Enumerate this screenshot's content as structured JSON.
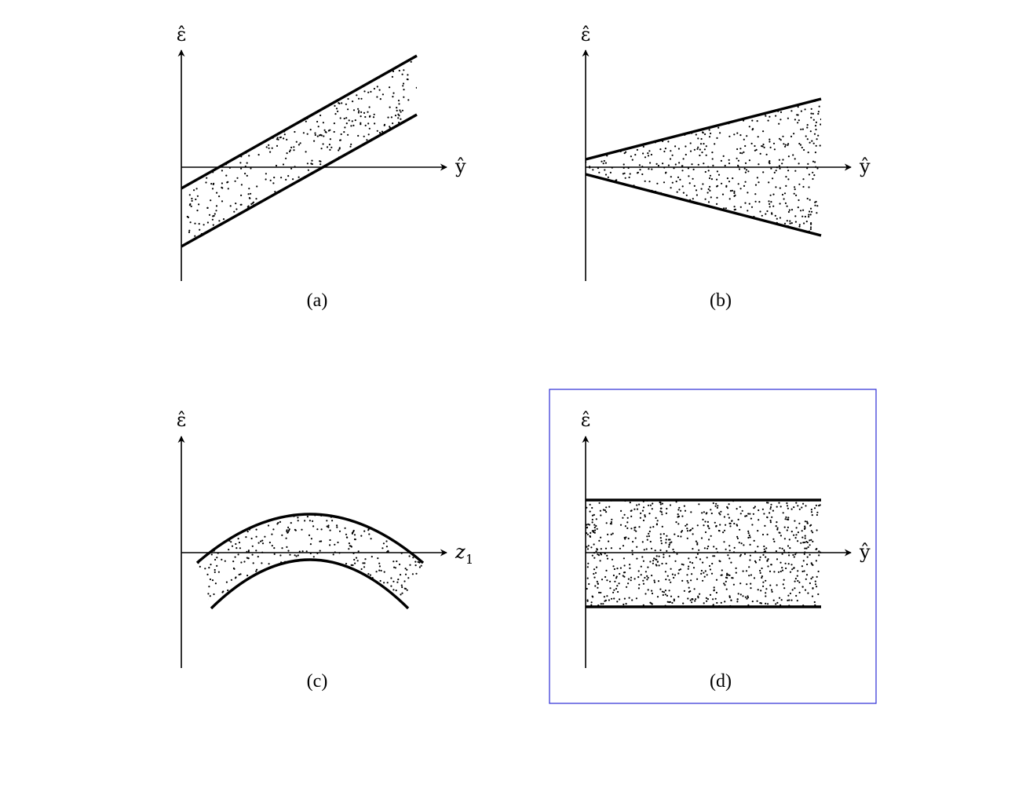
{
  "panels": [
    {
      "id": "a",
      "caption": "(a)",
      "y_axis_label": "ε̂",
      "x_axis_label": "ŷ",
      "x_axis_subscript": ""
    },
    {
      "id": "b",
      "caption": "(b)",
      "y_axis_label": "ε̂",
      "x_axis_label": "ŷ",
      "x_axis_subscript": ""
    },
    {
      "id": "c",
      "caption": "(c)",
      "y_axis_label": "ε̂",
      "x_axis_label": "z",
      "x_axis_subscript": "1"
    },
    {
      "id": "d",
      "caption": "(d)",
      "y_axis_label": "ε̂",
      "x_axis_label": "ŷ",
      "x_axis_subscript": "",
      "highlighted": true
    }
  ],
  "colors": {
    "ink": "#000000",
    "highlight_box": "#2b2bd6",
    "background": "#ffffff"
  }
}
